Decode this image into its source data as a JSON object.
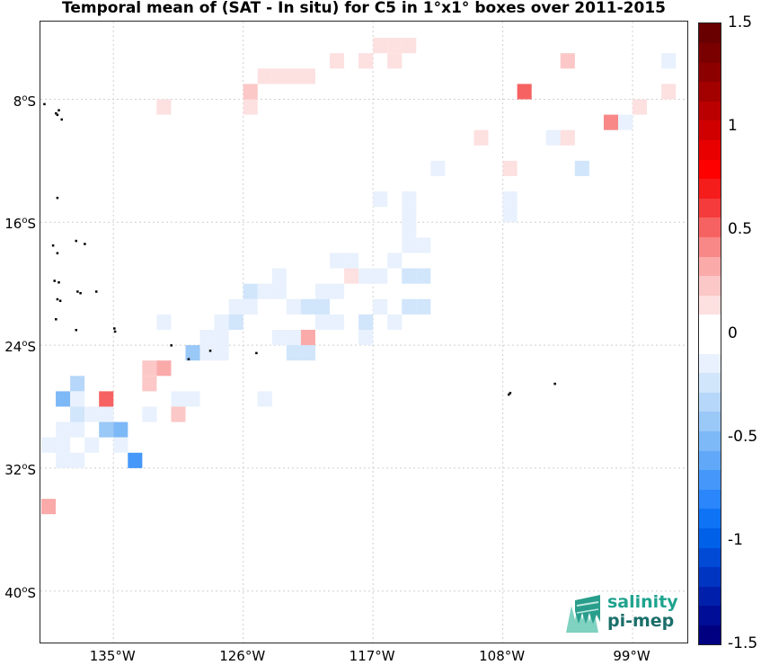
{
  "title": "Temporal mean of (SAT - In situ) for C5 in 1°x1° boxes over 2011-2015",
  "map": {
    "lon_range": [
      -140,
      -94
    ],
    "lat_range": [
      -45,
      -3
    ],
    "x_ticks": [
      {
        "lon": -135,
        "label": "135°W"
      },
      {
        "lon": -126,
        "label": "126°W"
      },
      {
        "lon": -117,
        "label": "117°W"
      },
      {
        "lon": -108,
        "label": "108°W"
      },
      {
        "lon": -99,
        "label": "99°W"
      }
    ],
    "y_ticks": [
      {
        "lat": -8,
        "deg": "8",
        "hem": "S"
      },
      {
        "lat": -16,
        "deg": "16",
        "hem": "S"
      },
      {
        "lat": -24,
        "deg": "24",
        "hem": "S"
      },
      {
        "lat": -32,
        "deg": "32",
        "hem": "S"
      },
      {
        "lat": -40,
        "deg": "40",
        "hem": "S"
      }
    ],
    "grid": true,
    "colors": {
      "land": "#000000",
      "grid": "#cfcfcf"
    }
  },
  "colorbar": {
    "range": [
      -1.5,
      1.5
    ],
    "tick_labels": [
      {
        "value": 1.5,
        "label": "1.5"
      },
      {
        "value": 1,
        "label": "1"
      },
      {
        "value": 0.5,
        "label": "0.5"
      },
      {
        "value": 0,
        "label": "0"
      },
      {
        "value": -0.5,
        "label": "-0.5"
      },
      {
        "value": -1,
        "label": "-1"
      },
      {
        "value": -1.5,
        "label": "-1.5"
      }
    ],
    "colors": [
      "#000080",
      "#000d96",
      "#0020ab",
      "#0035c2",
      "#004ad6",
      "#0060e8",
      "#0f73f5",
      "#2a86fa",
      "#4597fa",
      "#61a8f8",
      "#7db8f7",
      "#9ac8f7",
      "#b6d7f9",
      "#d1e5fb",
      "#e8f1fd",
      "#ffffff",
      "#ffffff",
      "#fde0e0",
      "#fcc7c7",
      "#fbaaaa",
      "#f88888",
      "#f66262",
      "#f53b3b",
      "#f51c1c",
      "#ff0000",
      "#e80000",
      "#d10000",
      "#ba0000",
      "#a30000",
      "#8c0000",
      "#7a0000",
      "#680000"
    ]
  },
  "chart_data": {
    "type": "heatmap",
    "title": "Temporal mean of (SAT - In situ) for C5 in 1°x1° boxes over 2011-2015",
    "cell_size_deg": 1,
    "color_scale": {
      "min": -1.5,
      "max": 1.5
    },
    "cells": [
      {
        "lon": -116.5,
        "lat": -4.5,
        "v": 0.1
      },
      {
        "lon": -115.5,
        "lat": -4.5,
        "v": 0.1
      },
      {
        "lon": -114.5,
        "lat": -4.5,
        "v": 0.1
      },
      {
        "lon": -119.5,
        "lat": -5.5,
        "v": 0.15
      },
      {
        "lon": -117.5,
        "lat": -5.5,
        "v": 0.15
      },
      {
        "lon": -115.5,
        "lat": -5.5,
        "v": 0.15
      },
      {
        "lon": -103.5,
        "lat": -5.5,
        "v": 0.2
      },
      {
        "lon": -96.5,
        "lat": -5.5,
        "v": -0.1
      },
      {
        "lon": -121.5,
        "lat": -6.5,
        "v": 0.1
      },
      {
        "lon": -122.5,
        "lat": -6.5,
        "v": 0.1
      },
      {
        "lon": -123.5,
        "lat": -6.5,
        "v": 0.1
      },
      {
        "lon": -124.5,
        "lat": -6.5,
        "v": 0.1
      },
      {
        "lon": -125.5,
        "lat": -7.5,
        "v": 0.2
      },
      {
        "lon": -106.5,
        "lat": -7.5,
        "v": 0.5
      },
      {
        "lon": -96.5,
        "lat": -7.5,
        "v": 0.15
      },
      {
        "lon": -131.5,
        "lat": -8.5,
        "v": 0.15
      },
      {
        "lon": -125.5,
        "lat": -8.5,
        "v": 0.15
      },
      {
        "lon": -98.5,
        "lat": -8.5,
        "v": 0.15
      },
      {
        "lon": -100.5,
        "lat": -9.5,
        "v": 0.4
      },
      {
        "lon": -99.5,
        "lat": -9.5,
        "v": -0.1
      },
      {
        "lon": -109.5,
        "lat": -10.5,
        "v": 0.15
      },
      {
        "lon": -104.5,
        "lat": -10.5,
        "v": -0.1
      },
      {
        "lon": -103.5,
        "lat": -10.5,
        "v": 0.15
      },
      {
        "lon": -112.5,
        "lat": -12.5,
        "v": -0.1
      },
      {
        "lon": -107.5,
        "lat": -12.5,
        "v": 0.15
      },
      {
        "lon": -102.5,
        "lat": -12.5,
        "v": -0.2
      },
      {
        "lon": -116.5,
        "lat": -14.5,
        "v": -0.1
      },
      {
        "lon": -114.5,
        "lat": -14.5,
        "v": -0.1
      },
      {
        "lon": -107.5,
        "lat": -14.5,
        "v": -0.1
      },
      {
        "lon": -114.5,
        "lat": -15.5,
        "v": -0.1
      },
      {
        "lon": -107.5,
        "lat": -15.5,
        "v": -0.1
      },
      {
        "lon": -114.5,
        "lat": -16.5,
        "v": -0.1
      },
      {
        "lon": -114.5,
        "lat": -17.5,
        "v": -0.1
      },
      {
        "lon": -113.5,
        "lat": -17.5,
        "v": -0.1
      },
      {
        "lon": -119.5,
        "lat": -18.5,
        "v": -0.1
      },
      {
        "lon": -118.5,
        "lat": -18.5,
        "v": -0.1
      },
      {
        "lon": -115.5,
        "lat": -18.5,
        "v": -0.1
      },
      {
        "lon": -123.5,
        "lat": -19.5,
        "v": -0.1
      },
      {
        "lon": -118.5,
        "lat": -19.5,
        "v": 0.15
      },
      {
        "lon": -117.5,
        "lat": -19.5,
        "v": -0.15
      },
      {
        "lon": -116.5,
        "lat": -19.5,
        "v": -0.1
      },
      {
        "lon": -114.5,
        "lat": -19.5,
        "v": -0.2
      },
      {
        "lon": -113.5,
        "lat": -19.5,
        "v": -0.2
      },
      {
        "lon": -125.5,
        "lat": -20.5,
        "v": -0.2
      },
      {
        "lon": -124.5,
        "lat": -20.5,
        "v": -0.1
      },
      {
        "lon": -123.5,
        "lat": -20.5,
        "v": -0.1
      },
      {
        "lon": -120.5,
        "lat": -20.5,
        "v": -0.1
      },
      {
        "lon": -119.5,
        "lat": -20.5,
        "v": -0.1
      },
      {
        "lon": -126.5,
        "lat": -21.5,
        "v": -0.1
      },
      {
        "lon": -125.5,
        "lat": -21.5,
        "v": -0.1
      },
      {
        "lon": -122.5,
        "lat": -21.5,
        "v": -0.1
      },
      {
        "lon": -121.5,
        "lat": -21.5,
        "v": -0.2
      },
      {
        "lon": -120.5,
        "lat": -21.5,
        "v": -0.2
      },
      {
        "lon": -116.5,
        "lat": -21.5,
        "v": -0.1
      },
      {
        "lon": -114.5,
        "lat": -21.5,
        "v": -0.2
      },
      {
        "lon": -113.5,
        "lat": -21.5,
        "v": -0.2
      },
      {
        "lon": -131.5,
        "lat": -22.5,
        "v": -0.1
      },
      {
        "lon": -127.5,
        "lat": -22.5,
        "v": -0.1
      },
      {
        "lon": -126.5,
        "lat": -22.5,
        "v": -0.2
      },
      {
        "lon": -120.5,
        "lat": -22.5,
        "v": -0.1
      },
      {
        "lon": -119.5,
        "lat": -22.5,
        "v": -0.1
      },
      {
        "lon": -117.5,
        "lat": -22.5,
        "v": -0.2
      },
      {
        "lon": -115.5,
        "lat": -22.5,
        "v": -0.1
      },
      {
        "lon": -128.5,
        "lat": -23.5,
        "v": -0.1
      },
      {
        "lon": -127.5,
        "lat": -23.5,
        "v": -0.1
      },
      {
        "lon": -123.5,
        "lat": -23.5,
        "v": -0.1
      },
      {
        "lon": -122.5,
        "lat": -23.5,
        "v": -0.1
      },
      {
        "lon": -121.5,
        "lat": -23.5,
        "v": 0.3
      },
      {
        "lon": -117.5,
        "lat": -23.5,
        "v": -0.1
      },
      {
        "lon": -129.5,
        "lat": -24.5,
        "v": -0.4
      },
      {
        "lon": -128.5,
        "lat": -24.5,
        "v": -0.1
      },
      {
        "lon": -127.5,
        "lat": -24.5,
        "v": -0.1
      },
      {
        "lon": -122.5,
        "lat": -24.5,
        "v": -0.2
      },
      {
        "lon": -121.5,
        "lat": -24.5,
        "v": -0.2
      },
      {
        "lon": -132.5,
        "lat": -25.5,
        "v": 0.2
      },
      {
        "lon": -131.5,
        "lat": -25.5,
        "v": 0.3
      },
      {
        "lon": -132.5,
        "lat": -26.5,
        "v": 0.25
      },
      {
        "lon": -137.5,
        "lat": -26.5,
        "v": -0.3
      },
      {
        "lon": -138.5,
        "lat": -27.5,
        "v": -0.5
      },
      {
        "lon": -137.5,
        "lat": -27.5,
        "v": -0.1
      },
      {
        "lon": -135.5,
        "lat": -27.5,
        "v": 0.55
      },
      {
        "lon": -130.5,
        "lat": -27.5,
        "v": -0.1
      },
      {
        "lon": -129.5,
        "lat": -27.5,
        "v": -0.1
      },
      {
        "lon": -124.5,
        "lat": -27.5,
        "v": -0.1
      },
      {
        "lon": -137.5,
        "lat": -28.5,
        "v": -0.2
      },
      {
        "lon": -136.5,
        "lat": -28.5,
        "v": -0.1
      },
      {
        "lon": -135.5,
        "lat": -28.5,
        "v": -0.1
      },
      {
        "lon": -132.5,
        "lat": -28.5,
        "v": -0.1
      },
      {
        "lon": -130.5,
        "lat": -28.5,
        "v": 0.2
      },
      {
        "lon": -138.5,
        "lat": -29.5,
        "v": -0.1
      },
      {
        "lon": -137.5,
        "lat": -29.5,
        "v": -0.1
      },
      {
        "lon": -135.5,
        "lat": -29.5,
        "v": -0.4
      },
      {
        "lon": -134.5,
        "lat": -29.5,
        "v": -0.55
      },
      {
        "lon": -139.5,
        "lat": -30.5,
        "v": -0.1
      },
      {
        "lon": -138.5,
        "lat": -30.5,
        "v": -0.1
      },
      {
        "lon": -136.5,
        "lat": -30.5,
        "v": -0.1
      },
      {
        "lon": -134.5,
        "lat": -30.5,
        "v": -0.1
      },
      {
        "lon": -138.5,
        "lat": -31.5,
        "v": -0.1
      },
      {
        "lon": -137.5,
        "lat": -31.5,
        "v": -0.1
      },
      {
        "lon": -133.5,
        "lat": -31.5,
        "v": -0.7
      },
      {
        "lon": -139.5,
        "lat": -34.5,
        "v": 0.3
      }
    ],
    "land_points": [
      [
        -139.8,
        -8.3
      ],
      [
        -139.0,
        -8.9
      ],
      [
        -138.8,
        -8.7
      ],
      [
        -138.6,
        -9.3
      ],
      [
        -138.9,
        -9.0
      ],
      [
        -138.9,
        -14.4
      ],
      [
        -139.2,
        -17.5
      ],
      [
        -138.9,
        -18.0
      ],
      [
        -137.6,
        -17.2
      ],
      [
        -137.0,
        -17.4
      ],
      [
        -139.1,
        -19.8
      ],
      [
        -138.8,
        -19.9
      ],
      [
        -137.5,
        -20.5
      ],
      [
        -137.3,
        -20.6
      ],
      [
        -136.2,
        -20.5
      ],
      [
        -138.9,
        -21.0
      ],
      [
        -138.7,
        -21.1
      ],
      [
        -139.0,
        -22.3
      ],
      [
        -137.6,
        -23.0
      ],
      [
        -134.9,
        -23.1
      ],
      [
        -134.95,
        -22.9
      ],
      [
        -131.0,
        -24.0
      ],
      [
        -128.3,
        -24.35
      ],
      [
        -125.1,
        -24.5
      ],
      [
        -129.8,
        -24.9
      ],
      [
        -107.5,
        -27.1
      ],
      [
        -107.6,
        -27.2
      ],
      [
        -104.4,
        -26.5
      ]
    ]
  },
  "logo": {
    "line1": "salinity",
    "line2": "pi-mep"
  }
}
